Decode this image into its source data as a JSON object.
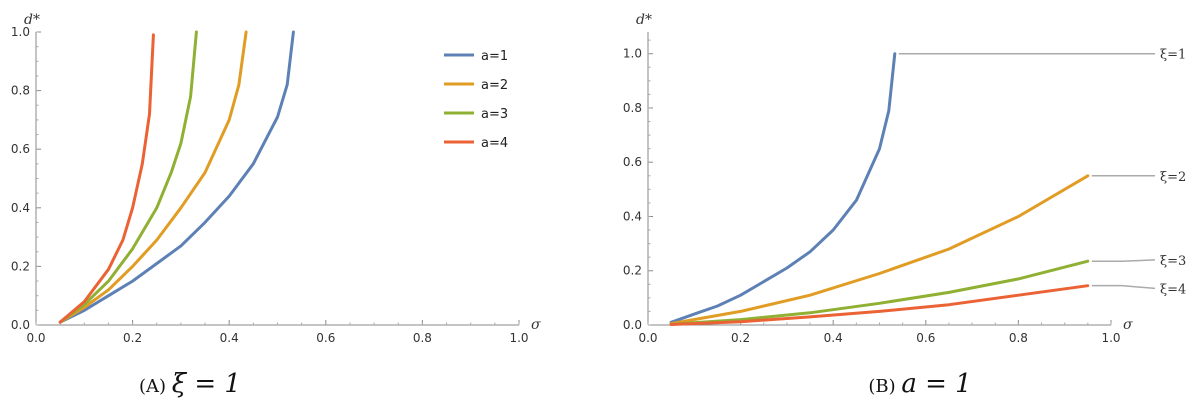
{
  "chart_data": [
    {
      "type": "line",
      "caption": {
        "tag": "(A)",
        "math": "ξ = 1"
      },
      "xlabel": "σ",
      "ylabel": "d*",
      "xlim": [
        0,
        1
      ],
      "ylim": [
        0,
        1
      ],
      "xticks": [
        "0.0",
        "0.2",
        "0.4",
        "0.6",
        "0.8",
        "1.0"
      ],
      "yticks": [
        "0.0",
        "0.2",
        "0.4",
        "0.6",
        "0.8",
        "1.0"
      ],
      "grid": false,
      "legend_position": "top-right",
      "series": [
        {
          "name": "a=1",
          "color": "#5E81B5",
          "x": [
            0.05,
            0.1,
            0.15,
            0.2,
            0.25,
            0.3,
            0.35,
            0.4,
            0.45,
            0.5,
            0.52,
            0.533
          ],
          "y": [
            0.01,
            0.05,
            0.1,
            0.15,
            0.21,
            0.27,
            0.35,
            0.44,
            0.55,
            0.71,
            0.82,
            1.0
          ]
        },
        {
          "name": "a=2",
          "color": "#E19C24",
          "x": [
            0.05,
            0.1,
            0.15,
            0.2,
            0.25,
            0.3,
            0.35,
            0.4,
            0.42,
            0.435
          ],
          "y": [
            0.01,
            0.06,
            0.12,
            0.2,
            0.29,
            0.4,
            0.52,
            0.7,
            0.82,
            1.0
          ]
        },
        {
          "name": "a=3",
          "color": "#8FB032",
          "x": [
            0.05,
            0.1,
            0.15,
            0.2,
            0.25,
            0.28,
            0.3,
            0.32,
            0.332
          ],
          "y": [
            0.01,
            0.07,
            0.15,
            0.26,
            0.4,
            0.52,
            0.62,
            0.78,
            1.0
          ]
        },
        {
          "name": "a=4",
          "color": "#EB6235",
          "x": [
            0.05,
            0.1,
            0.15,
            0.18,
            0.2,
            0.22,
            0.235,
            0.243
          ],
          "y": [
            0.01,
            0.08,
            0.19,
            0.29,
            0.4,
            0.55,
            0.72,
            0.99
          ]
        }
      ]
    },
    {
      "type": "line",
      "caption": {
        "tag": "(B)",
        "math": "a = 1"
      },
      "xlabel": "σ",
      "ylabel": "d*",
      "xlim": [
        0,
        1
      ],
      "ylim": [
        0,
        1.08
      ],
      "xticks": [
        "0.0",
        "0.2",
        "0.4",
        "0.6",
        "0.8",
        "1.0"
      ],
      "yticks": [
        "0.0",
        "0.2",
        "0.4",
        "0.6",
        "0.8",
        "1.0"
      ],
      "grid": false,
      "series": [
        {
          "name": "ξ=1",
          "color": "#5E81B5",
          "x": [
            0.05,
            0.1,
            0.15,
            0.2,
            0.25,
            0.3,
            0.35,
            0.4,
            0.45,
            0.5,
            0.52,
            0.533
          ],
          "y": [
            0.01,
            0.04,
            0.07,
            0.11,
            0.16,
            0.21,
            0.27,
            0.35,
            0.46,
            0.65,
            0.79,
            1.0
          ]
        },
        {
          "name": "ξ=2",
          "color": "#E19C24",
          "x": [
            0.05,
            0.2,
            0.35,
            0.5,
            0.65,
            0.8,
            0.95
          ],
          "y": [
            0.005,
            0.05,
            0.11,
            0.19,
            0.28,
            0.4,
            0.55
          ]
        },
        {
          "name": "ξ=3",
          "color": "#8FB032",
          "x": [
            0.05,
            0.2,
            0.35,
            0.5,
            0.65,
            0.8,
            0.95
          ],
          "y": [
            0.003,
            0.02,
            0.045,
            0.08,
            0.12,
            0.17,
            0.235
          ]
        },
        {
          "name": "ξ=4",
          "color": "#EB6235",
          "x": [
            0.05,
            0.2,
            0.35,
            0.5,
            0.65,
            0.8,
            0.95
          ],
          "y": [
            0.002,
            0.012,
            0.03,
            0.05,
            0.075,
            0.11,
            0.145
          ]
        }
      ],
      "annotations": [
        {
          "label": "ξ=1",
          "x": 0.533,
          "y": 1.0,
          "label_y": 1.0
        },
        {
          "label": "ξ=2",
          "x": 0.95,
          "y": 0.55,
          "label_y": 0.55
        },
        {
          "label": "ξ=3",
          "x": 0.95,
          "y": 0.235,
          "label_y": 0.24
        },
        {
          "label": "ξ=4",
          "x": 0.95,
          "y": 0.145,
          "label_y": 0.135
        }
      ]
    }
  ]
}
